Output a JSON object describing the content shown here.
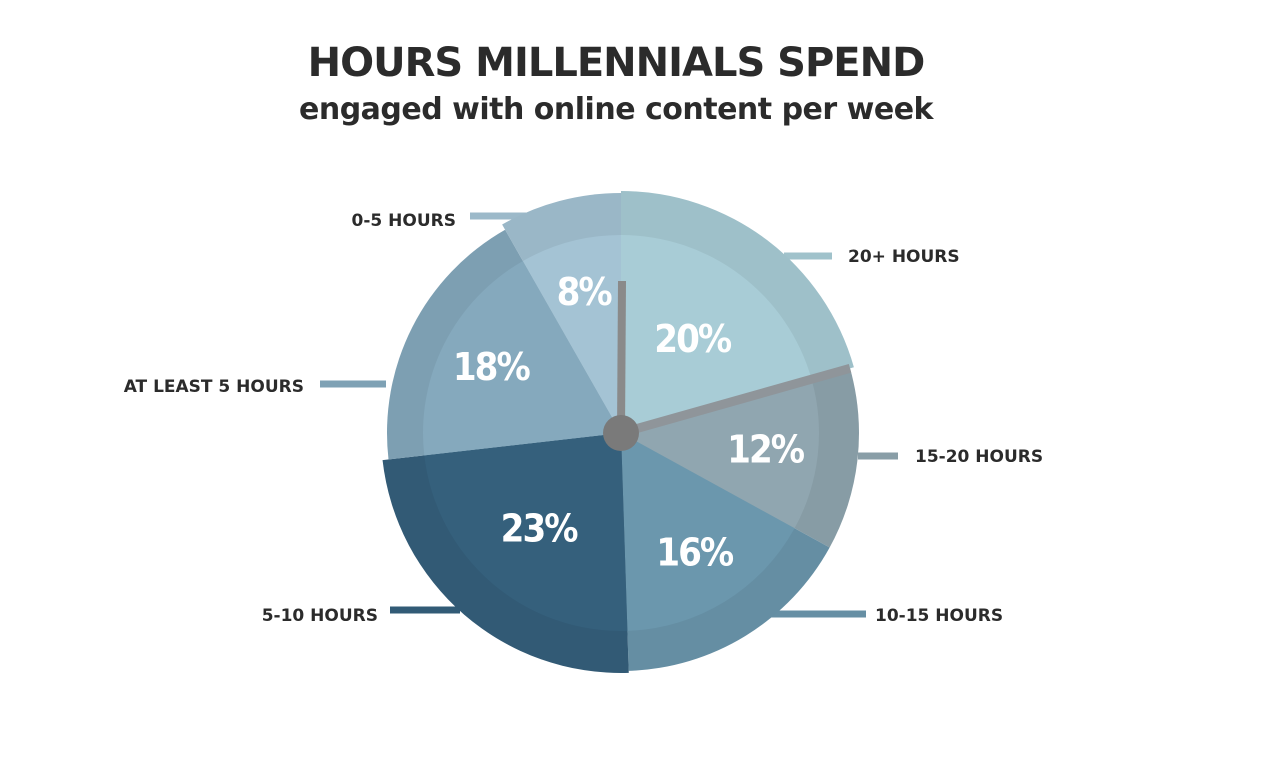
{
  "chart_data": {
    "type": "pie",
    "title": "HOURS MILLENNIALS SPEND",
    "subtitle": "engaged with online content per week",
    "slices": [
      {
        "label": "20+ HOURS",
        "value": 20,
        "value_label": "20%",
        "color": "#a8ccd6"
      },
      {
        "label": "15-20 HOURS",
        "value": 12,
        "value_label": "12%",
        "color": "#90a6b0"
      },
      {
        "label": "10-15 HOURS",
        "value": 16,
        "value_label": "16%",
        "color": "#6b97ad"
      },
      {
        "label": "5-10 HOURS",
        "value": 23,
        "value_label": "23%",
        "color": "#35607c"
      },
      {
        "label": "AT LEAST 5 HOURS",
        "value": 18,
        "value_label": "18%",
        "color": "#85a9bd"
      },
      {
        "label": "0-5 HOURS",
        "value": 8,
        "value_label": "8%",
        "color": "#a4c3d4"
      }
    ]
  }
}
